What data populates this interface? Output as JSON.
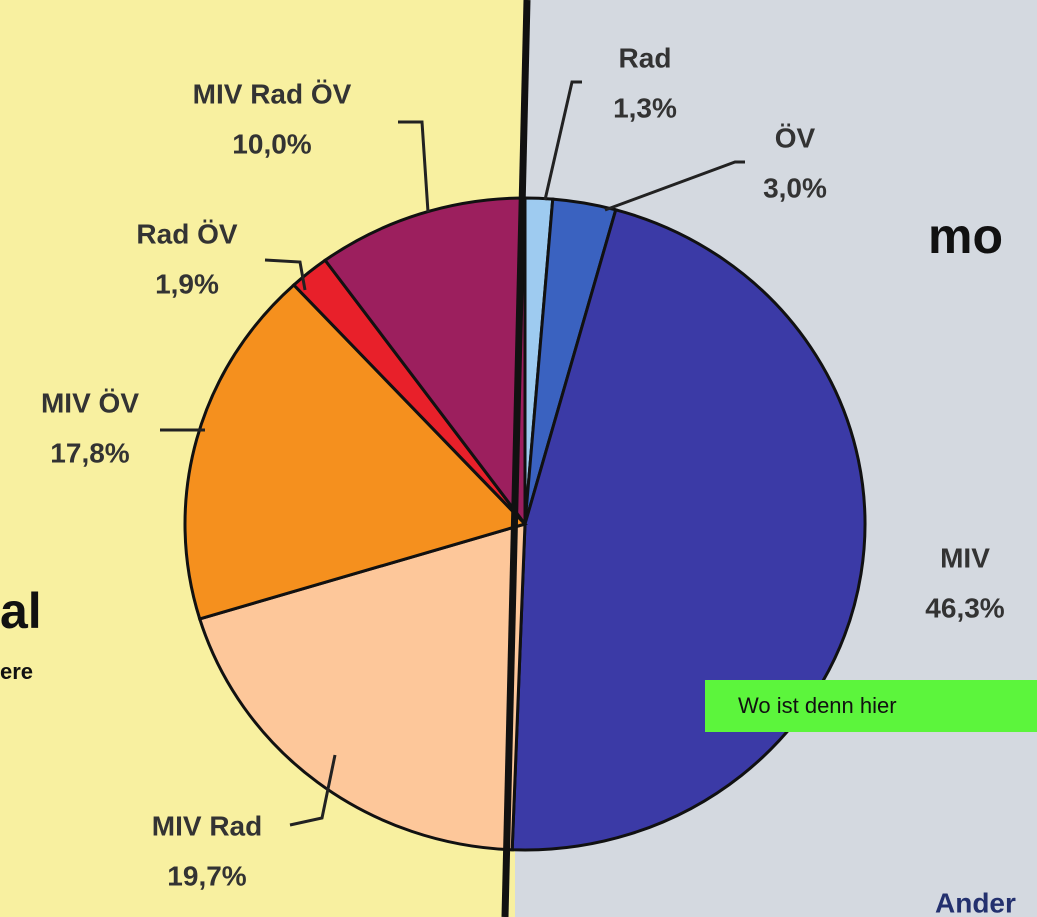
{
  "chart_data": {
    "type": "pie",
    "categories": [
      "Rad",
      "ÖV",
      "MIV",
      "MIV Rad",
      "MIV ÖV",
      "Rad ÖV",
      "MIV Rad ÖV"
    ],
    "values": [
      1.3,
      3.0,
      46.3,
      19.7,
      17.8,
      1.9,
      10.0
    ],
    "value_labels": [
      "1,3%",
      "3,0%",
      "46,3%",
      "19,7%",
      "17,8%",
      "1,9%",
      "10,0%"
    ],
    "colors": [
      "#9ecbf0",
      "#3a62c0",
      "#3b3aa6",
      "#fdc79a",
      "#f5901e",
      "#e8202a",
      "#9c1f5e"
    ]
  },
  "texts": {
    "right_heading": "mo",
    "left_heading": "al",
    "left_sub": "ere",
    "note": "Wo ist denn hier",
    "footer": "Ander"
  }
}
